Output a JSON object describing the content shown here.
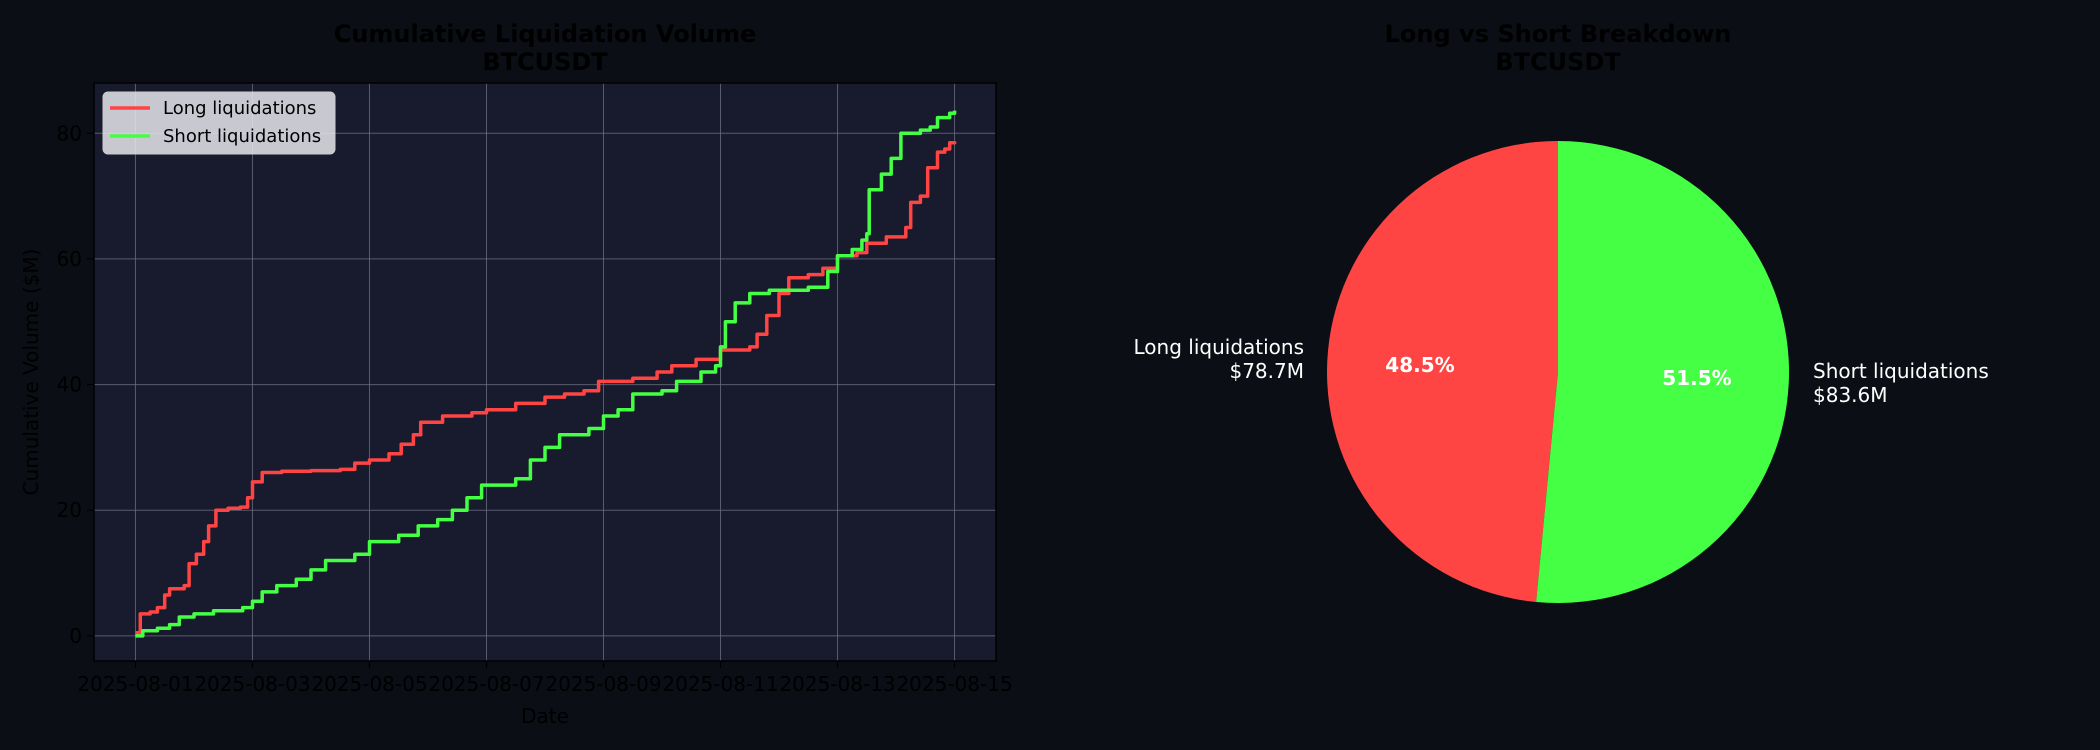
{
  "colors": {
    "background": "#0b0e15",
    "plot_bg": "#181a2d",
    "long": "#ff4444",
    "short": "#44ff44",
    "text_dark": "#000000",
    "text_light": "#ffffff",
    "grid": "#6a6d80"
  },
  "chart_data": [
    {
      "type": "line",
      "title": "Cumulative Liquidation Volume\nBTCUSDT",
      "title_lines": [
        "Cumulative Liquidation Volume",
        "BTCUSDT"
      ],
      "xlabel": "Date",
      "ylabel": "Cumulative Volume ($M)",
      "x_ticks": [
        "2025-08-01",
        "2025-08-03",
        "2025-08-05",
        "2025-08-07",
        "2025-08-09",
        "2025-08-11",
        "2025-08-13",
        "2025-08-15"
      ],
      "y_ticks": [
        0,
        20,
        40,
        60,
        80
      ],
      "xlim": [
        "2025-07-31T07:00",
        "2025-08-15T17:00"
      ],
      "ylim": [
        -4,
        88
      ],
      "grid": true,
      "legend": "upper-left",
      "series": [
        {
          "name": "Long liquidations",
          "color": "#ff4444",
          "points": [
            [
              "2025-08-01T00:00",
              0.5
            ],
            [
              "2025-08-01T02:00",
              3.5
            ],
            [
              "2025-08-01T06:00",
              3.8
            ],
            [
              "2025-08-01T09:00",
              4.5
            ],
            [
              "2025-08-01T12:00",
              6.5
            ],
            [
              "2025-08-01T14:00",
              7.5
            ],
            [
              "2025-08-01T20:00",
              8.0
            ],
            [
              "2025-08-01T22:00",
              11.5
            ],
            [
              "2025-08-02T01:00",
              13.0
            ],
            [
              "2025-08-02T04:00",
              15.0
            ],
            [
              "2025-08-02T06:00",
              17.5
            ],
            [
              "2025-08-02T09:00",
              20.0
            ],
            [
              "2025-08-02T14:00",
              20.3
            ],
            [
              "2025-08-02T19:00",
              20.5
            ],
            [
              "2025-08-02T22:00",
              22.0
            ],
            [
              "2025-08-03T00:00",
              24.5
            ],
            [
              "2025-08-03T04:00",
              26.0
            ],
            [
              "2025-08-03T12:00",
              26.2
            ],
            [
              "2025-08-04T00:00",
              26.3
            ],
            [
              "2025-08-04T12:00",
              26.5
            ],
            [
              "2025-08-04T18:00",
              27.5
            ],
            [
              "2025-08-05T00:00",
              28.0
            ],
            [
              "2025-08-05T08:00",
              29.0
            ],
            [
              "2025-08-05T13:00",
              30.5
            ],
            [
              "2025-08-05T18:00",
              32.0
            ],
            [
              "2025-08-05T21:00",
              34.0
            ],
            [
              "2025-08-06T06:00",
              35.0
            ],
            [
              "2025-08-06T18:00",
              35.5
            ],
            [
              "2025-08-07T00:00",
              36.0
            ],
            [
              "2025-08-07T12:00",
              37.0
            ],
            [
              "2025-08-08T00:00",
              38.0
            ],
            [
              "2025-08-08T08:00",
              38.5
            ],
            [
              "2025-08-08T16:00",
              39.0
            ],
            [
              "2025-08-08T22:00",
              40.5
            ],
            [
              "2025-08-09T12:00",
              41.0
            ],
            [
              "2025-08-09T22:00",
              42.0
            ],
            [
              "2025-08-10T04:00",
              43.0
            ],
            [
              "2025-08-10T14:00",
              44.0
            ],
            [
              "2025-08-11T00:00",
              45.5
            ],
            [
              "2025-08-11T12:00",
              46.0
            ],
            [
              "2025-08-11T15:00",
              48.0
            ],
            [
              "2025-08-11T19:00",
              51.0
            ],
            [
              "2025-08-12T00:00",
              54.5
            ],
            [
              "2025-08-12T04:00",
              57.0
            ],
            [
              "2025-08-12T12:00",
              57.5
            ],
            [
              "2025-08-12T18:00",
              58.5
            ],
            [
              "2025-08-13T00:00",
              60.5
            ],
            [
              "2025-08-13T08:00",
              61.0
            ],
            [
              "2025-08-13T12:00",
              62.5
            ],
            [
              "2025-08-13T20:00",
              63.5
            ],
            [
              "2025-08-14T04:00",
              65.0
            ],
            [
              "2025-08-14T06:00",
              69.0
            ],
            [
              "2025-08-14T10:00",
              70.0
            ],
            [
              "2025-08-14T13:00",
              74.5
            ],
            [
              "2025-08-14T17:00",
              77.0
            ],
            [
              "2025-08-14T20:00",
              77.5
            ],
            [
              "2025-08-14T22:00",
              78.5
            ],
            [
              "2025-08-15T00:00",
              78.7
            ]
          ]
        },
        {
          "name": "Short liquidations",
          "color": "#44ff44",
          "points": [
            [
              "2025-08-01T00:00",
              0.0
            ],
            [
              "2025-08-01T03:00",
              0.8
            ],
            [
              "2025-08-01T09:00",
              1.2
            ],
            [
              "2025-08-01T14:00",
              1.8
            ],
            [
              "2025-08-01T18:00",
              3.0
            ],
            [
              "2025-08-02T00:00",
              3.5
            ],
            [
              "2025-08-02T08:00",
              4.0
            ],
            [
              "2025-08-02T20:00",
              4.5
            ],
            [
              "2025-08-03T00:00",
              5.5
            ],
            [
              "2025-08-03T04:00",
              7.0
            ],
            [
              "2025-08-03T10:00",
              8.0
            ],
            [
              "2025-08-03T18:00",
              9.0
            ],
            [
              "2025-08-04T00:00",
              10.5
            ],
            [
              "2025-08-04T06:00",
              12.0
            ],
            [
              "2025-08-04T18:00",
              13.0
            ],
            [
              "2025-08-05T00:00",
              15.0
            ],
            [
              "2025-08-05T12:00",
              16.0
            ],
            [
              "2025-08-05T20:00",
              17.5
            ],
            [
              "2025-08-06T04:00",
              18.5
            ],
            [
              "2025-08-06T10:00",
              20.0
            ],
            [
              "2025-08-06T16:00",
              22.0
            ],
            [
              "2025-08-06T22:00",
              24.0
            ],
            [
              "2025-08-07T12:00",
              25.0
            ],
            [
              "2025-08-07T18:00",
              28.0
            ],
            [
              "2025-08-08T00:00",
              30.0
            ],
            [
              "2025-08-08T06:00",
              32.0
            ],
            [
              "2025-08-08T18:00",
              33.0
            ],
            [
              "2025-08-09T00:00",
              35.0
            ],
            [
              "2025-08-09T06:00",
              36.0
            ],
            [
              "2025-08-09T12:00",
              38.5
            ],
            [
              "2025-08-10T00:00",
              39.0
            ],
            [
              "2025-08-10T06:00",
              40.5
            ],
            [
              "2025-08-10T16:00",
              42.0
            ],
            [
              "2025-08-10T22:00",
              43.0
            ],
            [
              "2025-08-11T00:00",
              46.0
            ],
            [
              "2025-08-11T02:00",
              50.0
            ],
            [
              "2025-08-11T06:00",
              53.0
            ],
            [
              "2025-08-11T12:00",
              54.5
            ],
            [
              "2025-08-11T20:00",
              55.0
            ],
            [
              "2025-08-12T12:00",
              55.5
            ],
            [
              "2025-08-12T20:00",
              58.0
            ],
            [
              "2025-08-13T00:00",
              60.5
            ],
            [
              "2025-08-13T06:00",
              61.5
            ],
            [
              "2025-08-13T10:00",
              63.0
            ],
            [
              "2025-08-13T12:00",
              64.0
            ],
            [
              "2025-08-13T13:00",
              71.0
            ],
            [
              "2025-08-13T18:00",
              73.5
            ],
            [
              "2025-08-13T22:00",
              76.0
            ],
            [
              "2025-08-14T02:00",
              80.0
            ],
            [
              "2025-08-14T10:00",
              80.5
            ],
            [
              "2025-08-14T14:00",
              81.0
            ],
            [
              "2025-08-14T17:00",
              82.5
            ],
            [
              "2025-08-14T22:00",
              83.2
            ],
            [
              "2025-08-15T00:00",
              83.6
            ]
          ]
        }
      ]
    },
    {
      "type": "pie",
      "title": "Long vs Short Breakdown\nBTCUSDT",
      "title_lines": [
        "Long vs Short Breakdown",
        "BTCUSDT"
      ],
      "slices": [
        {
          "label": "Long liquidations",
          "amount_label": "$78.7M",
          "value": 78.7,
          "percent_label": "48.5%",
          "color": "#ff4444"
        },
        {
          "label": "Short liquidations",
          "amount_label": "$83.6M",
          "value": 83.6,
          "percent_label": "51.5%",
          "color": "#44ff44"
        }
      ]
    }
  ]
}
